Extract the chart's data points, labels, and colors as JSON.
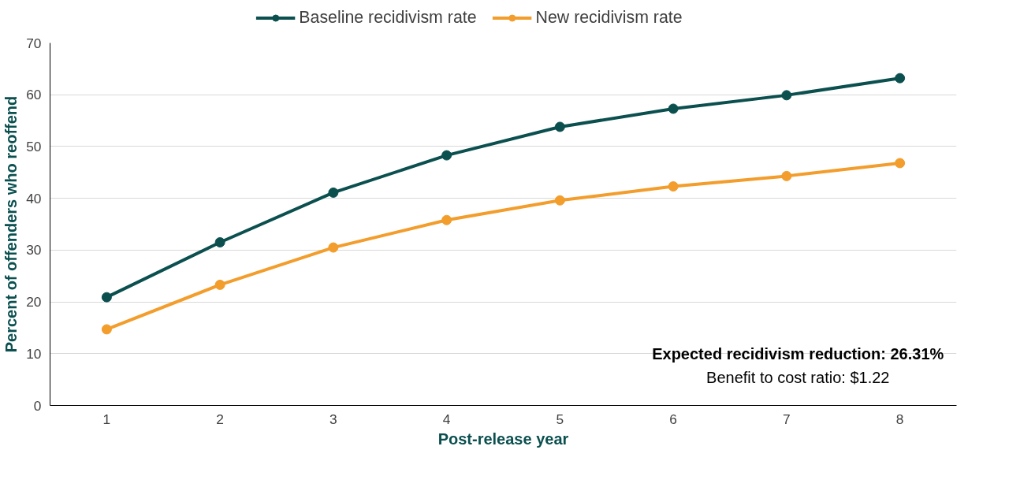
{
  "chart_data": {
    "type": "line",
    "xlabel": "Post-release year",
    "ylabel": "Percent of offenders who reoffend",
    "categories": [
      "1",
      "2",
      "3",
      "4",
      "5",
      "6",
      "7",
      "8"
    ],
    "series": [
      {
        "name": "Baseline recidivism rate",
        "color": "#0b4f4f",
        "values": [
          20.9,
          31.5,
          41.1,
          48.3,
          53.8,
          57.3,
          59.9,
          63.2
        ]
      },
      {
        "name": "New recidivism rate",
        "color": "#f29d2c",
        "values": [
          14.7,
          23.3,
          30.5,
          35.8,
          39.6,
          42.3,
          44.3,
          46.8
        ]
      }
    ],
    "ylim": [
      0,
      70
    ],
    "yticks": [
      0,
      10,
      20,
      30,
      40,
      50,
      60,
      70
    ],
    "grid": "y",
    "legend": "top",
    "marker": "circle",
    "line_style": "solid",
    "annotations": [
      "Expected recidivism reduction: 26.31%",
      "Benefit to cost ratio: $1.22"
    ]
  }
}
